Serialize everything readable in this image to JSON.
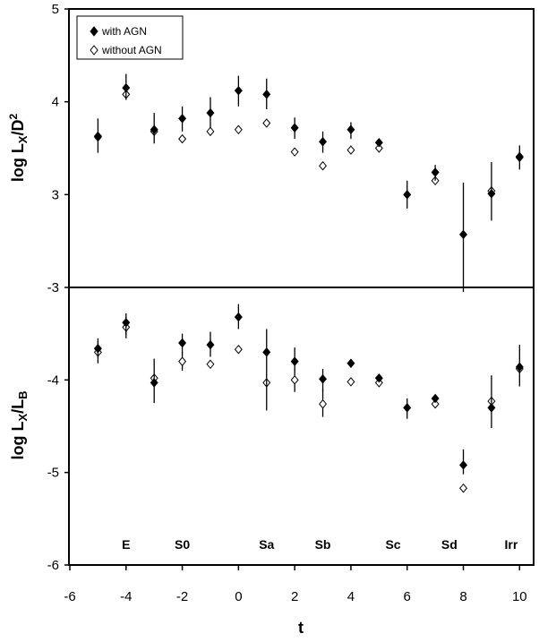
{
  "chart_data": [
    {
      "type": "scatter",
      "panel": "top",
      "ylabel": "log LX/D2",
      "ylim": [
        2,
        5
      ],
      "yticks": [
        "5",
        "4",
        "3"
      ],
      "legend": {
        "placement": "top-left",
        "items": [
          {
            "name": "with AGN",
            "marker": "filled-diamond"
          },
          {
            "name": "without AGN",
            "marker": "open-diamond"
          }
        ]
      },
      "series": [
        {
          "name": "with AGN",
          "marker": "filled-diamond",
          "points": [
            {
              "x": -5,
              "y": 3.63,
              "lo": 3.45,
              "hi": 3.82
            },
            {
              "x": -4,
              "y": 4.15,
              "lo": 4.02,
              "hi": 4.3
            },
            {
              "x": -3,
              "y": 3.7,
              "lo": 3.55,
              "hi": 3.88
            },
            {
              "x": -2,
              "y": 3.82,
              "lo": 3.68,
              "hi": 3.95
            },
            {
              "x": -1,
              "y": 3.88,
              "lo": 3.72,
              "hi": 4.05
            },
            {
              "x": 0,
              "y": 4.12,
              "lo": 3.95,
              "hi": 4.28
            },
            {
              "x": 1,
              "y": 4.08,
              "lo": 3.92,
              "hi": 4.25
            },
            {
              "x": 2,
              "y": 3.72,
              "lo": 3.6,
              "hi": 3.83
            },
            {
              "x": 3,
              "y": 3.57,
              "lo": 3.45,
              "hi": 3.68
            },
            {
              "x": 4,
              "y": 3.7,
              "lo": 3.6,
              "hi": 3.78
            },
            {
              "x": 5,
              "y": 3.56,
              "lo": 3.53,
              "hi": 3.59
            },
            {
              "x": 6,
              "y": 3.0,
              "lo": 2.85,
              "hi": 3.15
            },
            {
              "x": 7,
              "y": 3.24,
              "lo": 3.15,
              "hi": 3.32
            },
            {
              "x": 8,
              "y": 2.57,
              "lo": 1.95,
              "hi": 3.13
            },
            {
              "x": 9,
              "y": 3.01,
              "lo": 2.72,
              "hi": 3.35
            },
            {
              "x": 10,
              "y": 3.4,
              "lo": 3.27,
              "hi": 3.53
            }
          ]
        },
        {
          "name": "without AGN",
          "marker": "open-diamond",
          "points": [
            {
              "x": -5,
              "y": 3.62
            },
            {
              "x": -4,
              "y": 4.08
            },
            {
              "x": -3,
              "y": 3.68
            },
            {
              "x": -2,
              "y": 3.6
            },
            {
              "x": -1,
              "y": 3.68
            },
            {
              "x": 0,
              "y": 3.7
            },
            {
              "x": 1,
              "y": 3.77
            },
            {
              "x": 2,
              "y": 3.46
            },
            {
              "x": 3,
              "y": 3.31
            },
            {
              "x": 4,
              "y": 3.48
            },
            {
              "x": 5,
              "y": 3.5
            },
            {
              "x": 7,
              "y": 3.15
            },
            {
              "x": 9,
              "y": 3.04
            },
            {
              "x": 10,
              "y": 3.41
            }
          ]
        }
      ]
    },
    {
      "type": "scatter",
      "panel": "bottom",
      "ylabel": "log LX/LB",
      "ylim": [
        -6,
        -3
      ],
      "yticks": [
        "-3",
        "-4",
        "-5",
        "-6"
      ],
      "xlabel": "t",
      "xlim": [
        -6,
        10.5
      ],
      "xticks": [
        "-6",
        "-4",
        "-2",
        "0",
        "2",
        "4",
        "6",
        "8",
        "10"
      ],
      "morph_labels": [
        {
          "x": -4,
          "label": "E"
        },
        {
          "x": -2,
          "label": "S0"
        },
        {
          "x": 1,
          "label": "Sa"
        },
        {
          "x": 3,
          "label": "Sb"
        },
        {
          "x": 5.5,
          "label": "Sc"
        },
        {
          "x": 7.5,
          "label": "Sd"
        },
        {
          "x": 9.7,
          "label": "Irr"
        }
      ],
      "series": [
        {
          "name": "with AGN",
          "marker": "filled-diamond",
          "points": [
            {
              "x": -5,
              "y": -3.66,
              "lo": -3.75,
              "hi": -3.55
            },
            {
              "x": -4,
              "y": -3.38,
              "lo": -3.5,
              "hi": -3.28
            },
            {
              "x": -3,
              "y": -4.03,
              "lo": -4.25,
              "hi": -3.77
            },
            {
              "x": -2,
              "y": -3.6,
              "lo": -3.72,
              "hi": -3.5
            },
            {
              "x": -1,
              "y": -3.62,
              "lo": -3.75,
              "hi": -3.48
            },
            {
              "x": 0,
              "y": -3.32,
              "lo": -3.45,
              "hi": -3.18
            },
            {
              "x": 1,
              "y": -3.7,
              "lo": -4.33,
              "hi": -3.45
            },
            {
              "x": 2,
              "y": -3.8,
              "lo": -3.9,
              "hi": -3.65
            },
            {
              "x": 3,
              "y": -3.99,
              "lo": -4.12,
              "hi": -3.88
            },
            {
              "x": 4,
              "y": -3.82,
              "lo": -3.86,
              "hi": -3.78
            },
            {
              "x": 5,
              "y": -3.98,
              "lo": -4.02,
              "hi": -3.94
            },
            {
              "x": 6,
              "y": -4.3,
              "lo": -4.42,
              "hi": -4.2
            },
            {
              "x": 7,
              "y": -4.2,
              "lo": -4.24,
              "hi": -4.16
            },
            {
              "x": 8,
              "y": -4.92,
              "lo": -5.02,
              "hi": -4.75
            },
            {
              "x": 9,
              "y": -4.3,
              "lo": -4.52,
              "hi": -3.95
            },
            {
              "x": 10,
              "y": -3.86,
              "lo": -4.07,
              "hi": -3.62
            }
          ]
        },
        {
          "name": "without AGN",
          "marker": "open-diamond",
          "points": [
            {
              "x": -5,
              "y": -3.7,
              "lo": -3.82,
              "hi": -3.58
            },
            {
              "x": -4,
              "y": -3.43,
              "lo": -3.55,
              "hi": -3.32
            },
            {
              "x": -3,
              "y": -3.98
            },
            {
              "x": -2,
              "y": -3.8,
              "lo": -3.9,
              "hi": -3.7
            },
            {
              "x": -1,
              "y": -3.83
            },
            {
              "x": 0,
              "y": -3.67
            },
            {
              "x": 1,
              "y": -4.03
            },
            {
              "x": 2,
              "y": -4.0,
              "lo": -4.13,
              "hi": -3.88
            },
            {
              "x": 3,
              "y": -4.26,
              "lo": -4.4,
              "hi": -4.1
            },
            {
              "x": 4,
              "y": -4.02
            },
            {
              "x": 5,
              "y": -4.03
            },
            {
              "x": 7,
              "y": -4.26
            },
            {
              "x": 8,
              "y": -5.17
            },
            {
              "x": 9,
              "y": -4.23
            },
            {
              "x": 10,
              "y": -3.88
            }
          ]
        }
      ]
    }
  ]
}
